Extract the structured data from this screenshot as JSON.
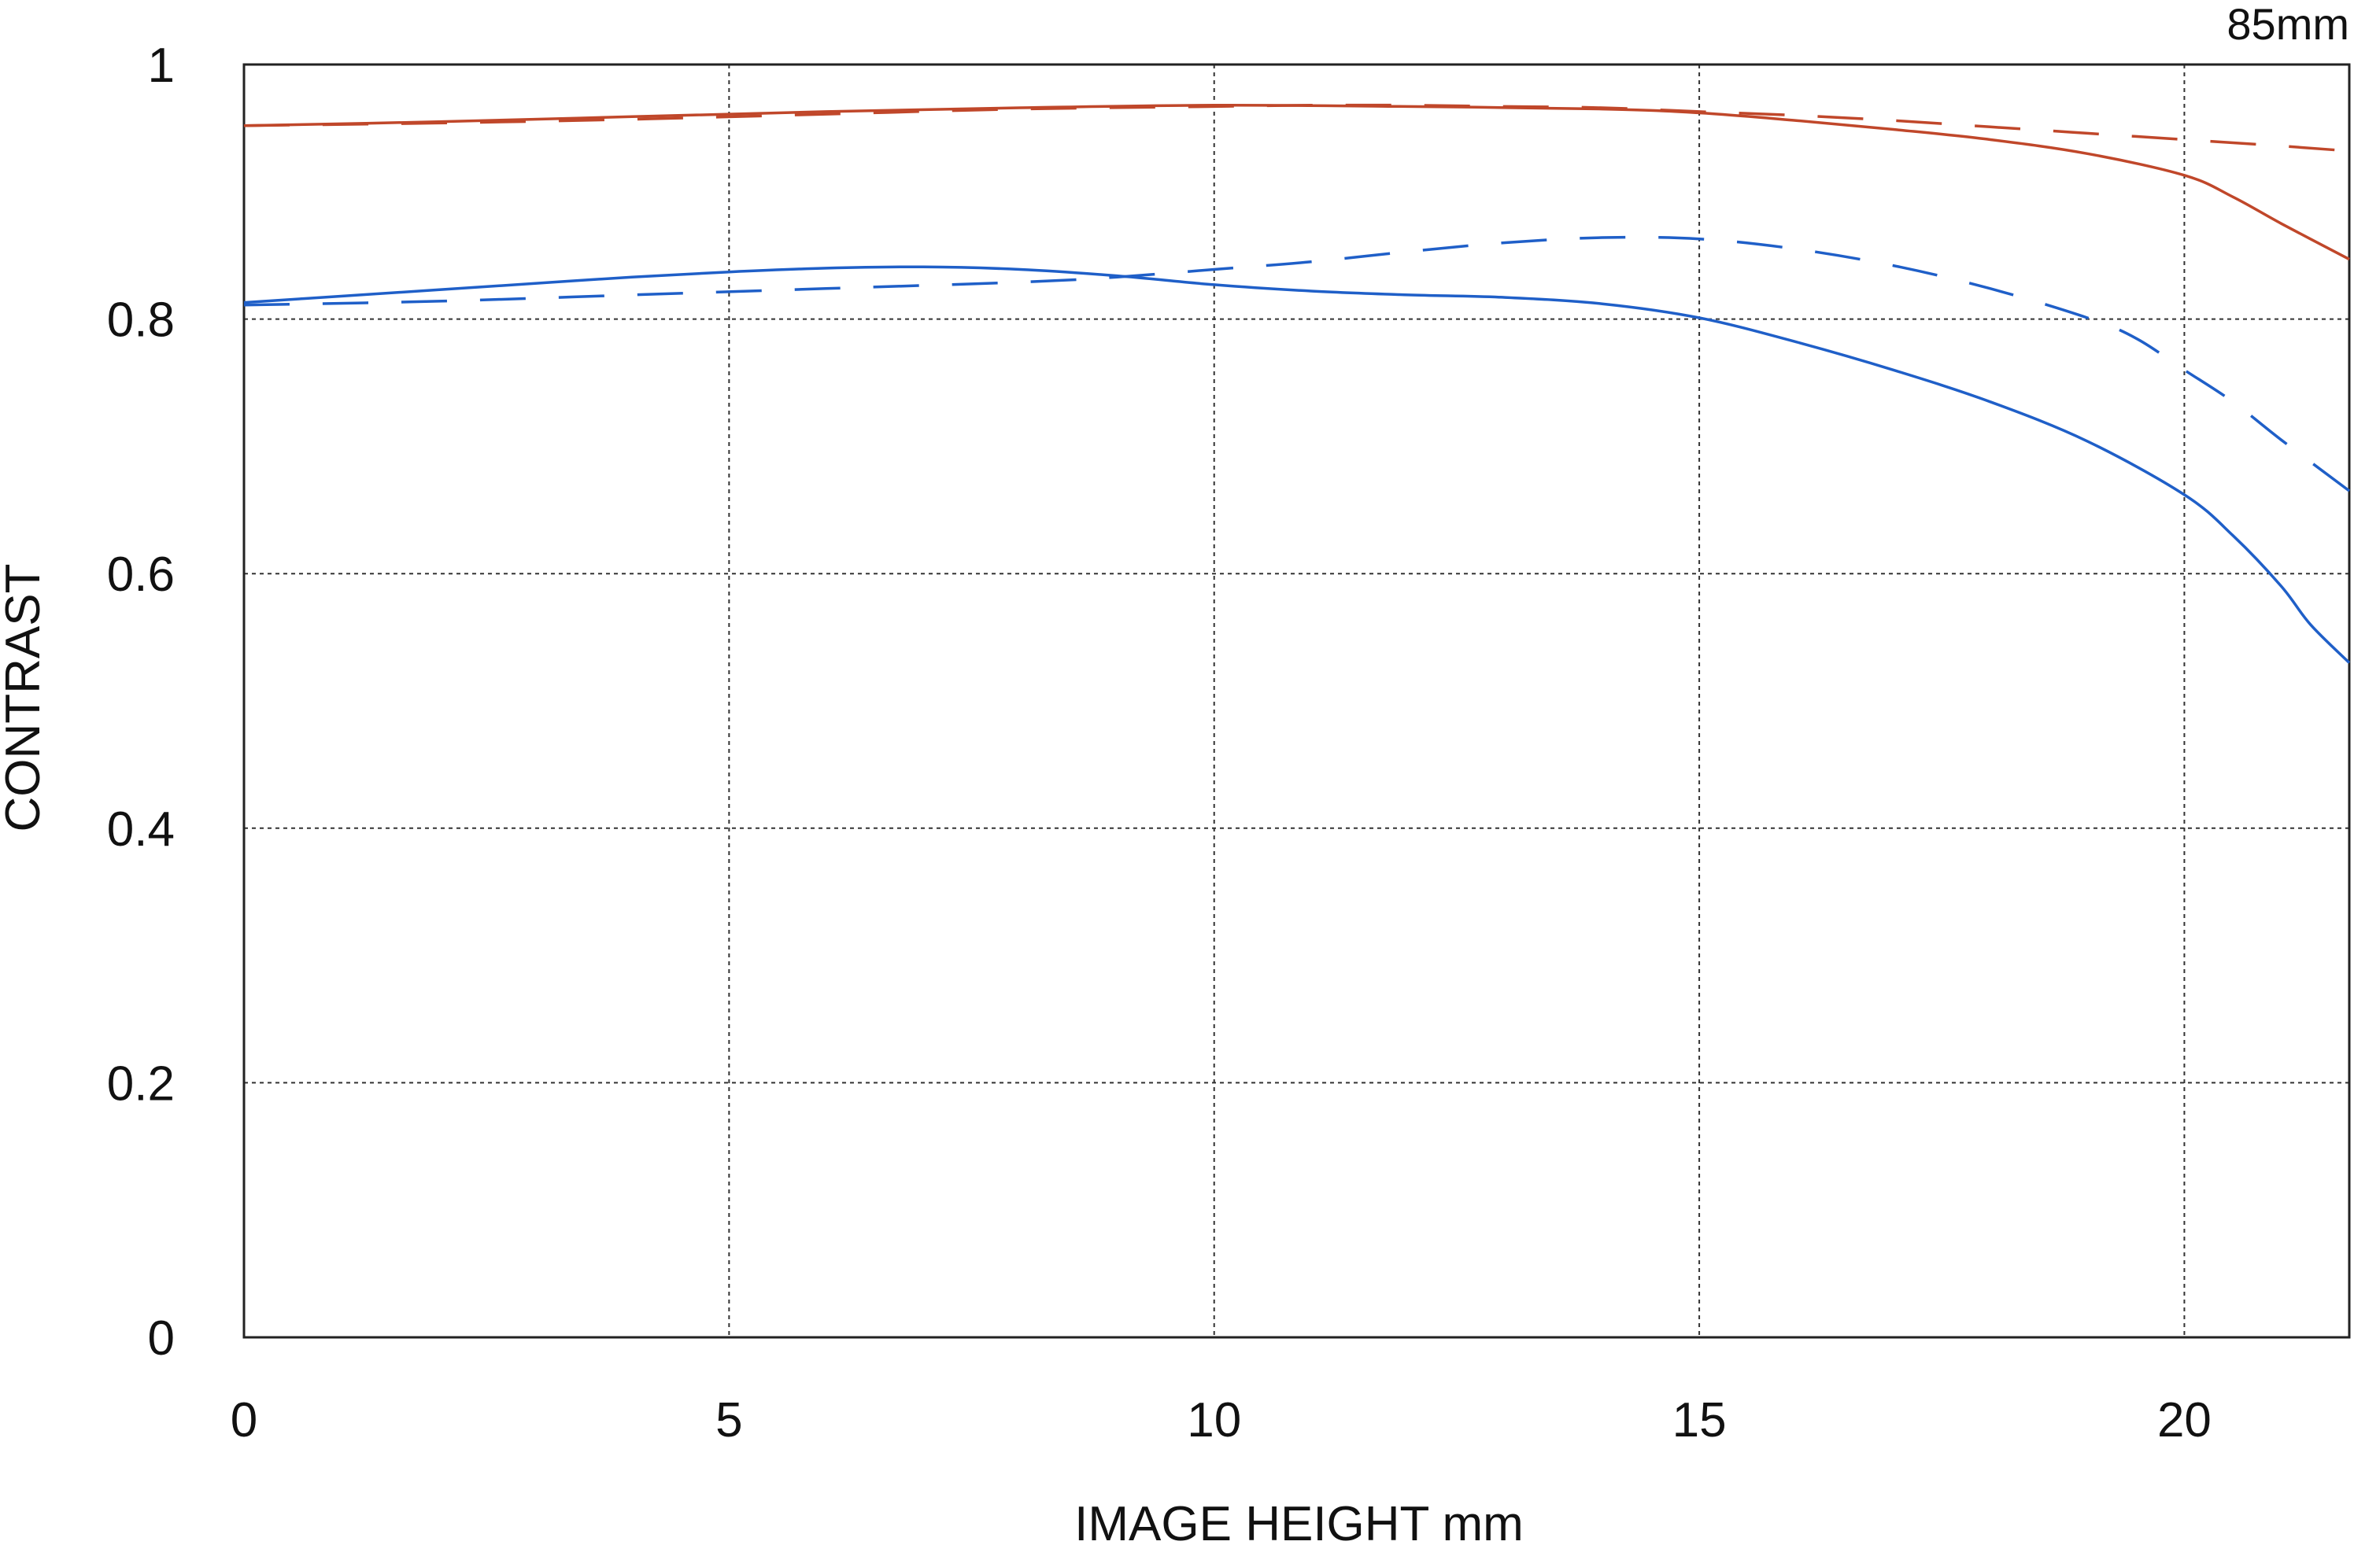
{
  "chart_data": {
    "type": "line",
    "title": "85mm",
    "xlabel": "IMAGE HEIGHT  mm",
    "ylabel": "CONTRAST",
    "xlim": [
      0,
      21.7
    ],
    "ylim": [
      0,
      1
    ],
    "x_ticks": [
      0,
      5,
      10,
      15,
      20
    ],
    "x_tick_labels": [
      "0",
      "5",
      "10",
      "15",
      "20"
    ],
    "y_ticks": [
      0,
      0.2,
      0.4,
      0.6,
      0.8,
      1
    ],
    "y_tick_labels": [
      "0",
      "0.2",
      "0.4",
      "0.6",
      "0.8",
      "1"
    ],
    "grid": true,
    "series": [
      {
        "color": "#c0472a",
        "style": "solid",
        "x": [
          0,
          2,
          4,
          6,
          8,
          10,
          12,
          14,
          15,
          16,
          17,
          18,
          19,
          20,
          20.5,
          21,
          21.7
        ],
        "y": [
          0.952,
          0.955,
          0.959,
          0.963,
          0.966,
          0.968,
          0.967,
          0.965,
          0.962,
          0.956,
          0.949,
          0.941,
          0.93,
          0.913,
          0.896,
          0.875,
          0.847
        ]
      },
      {
        "color": "#c0472a",
        "style": "dashed",
        "x": [
          0,
          2,
          4,
          6,
          8,
          10,
          11,
          12,
          13,
          14,
          15,
          16,
          17,
          18,
          19,
          20,
          21,
          21.7
        ],
        "y": [
          0.952,
          0.954,
          0.957,
          0.961,
          0.965,
          0.967,
          0.968,
          0.968,
          0.967,
          0.966,
          0.963,
          0.96,
          0.956,
          0.951,
          0.946,
          0.941,
          0.936,
          0.932
        ]
      },
      {
        "color": "#1f5fc8",
        "style": "solid",
        "x": [
          0,
          1,
          2,
          3,
          4,
          5,
          6,
          7,
          8,
          9,
          10,
          11,
          12,
          13,
          14,
          15,
          16,
          17,
          18,
          19,
          20,
          20.5,
          21,
          21.3,
          21.7
        ],
        "y": [
          0.813,
          0.818,
          0.823,
          0.828,
          0.833,
          0.837,
          0.84,
          0.841,
          0.839,
          0.834,
          0.827,
          0.822,
          0.819,
          0.817,
          0.812,
          0.801,
          0.782,
          0.76,
          0.735,
          0.704,
          0.662,
          0.63,
          0.59,
          0.56,
          0.53
        ]
      },
      {
        "color": "#1f5fc8",
        "style": "dashed",
        "x": [
          0,
          2,
          4,
          6,
          8,
          9,
          10,
          11,
          12,
          13,
          14,
          15,
          16,
          17,
          18,
          19,
          19.5,
          20,
          20.5,
          21,
          21.7
        ],
        "y": [
          0.811,
          0.814,
          0.819,
          0.824,
          0.829,
          0.833,
          0.839,
          0.845,
          0.853,
          0.86,
          0.864,
          0.863,
          0.855,
          0.842,
          0.824,
          0.801,
          0.785,
          0.76,
          0.735,
          0.705,
          0.665
        ]
      }
    ]
  }
}
